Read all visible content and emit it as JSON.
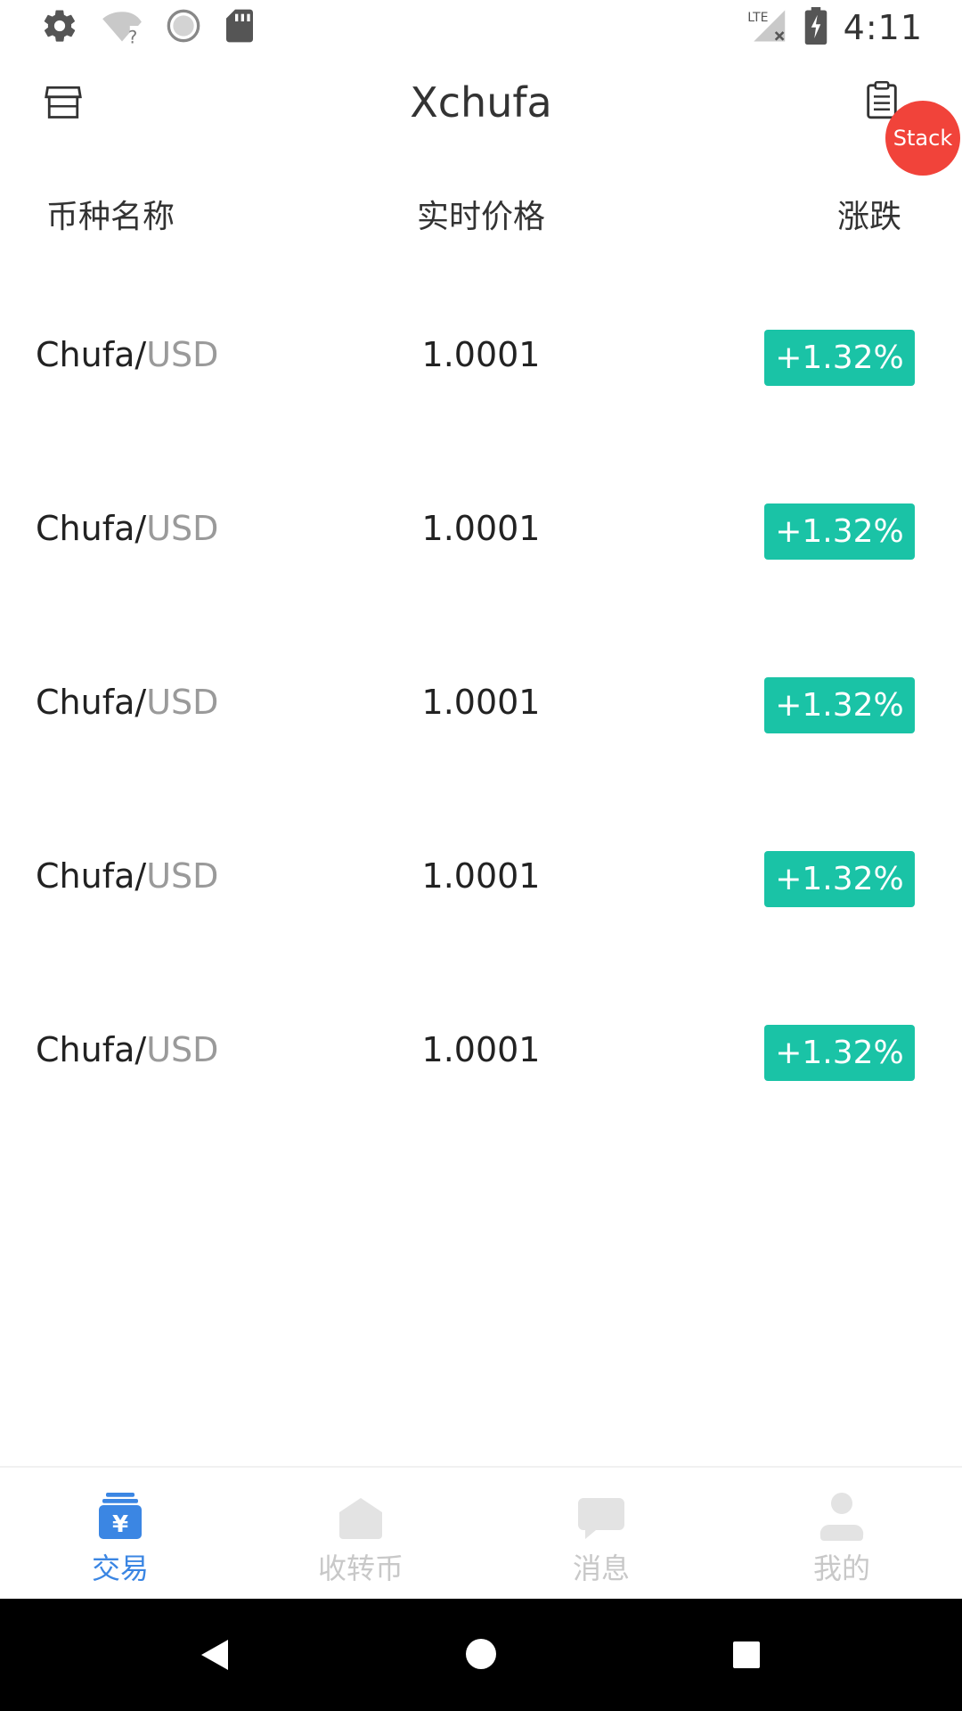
{
  "status_bar": {
    "time": "4:11",
    "network": "LTE",
    "icons": [
      "gear-icon",
      "wifi-question-icon",
      "sync-circle-icon",
      "sd-card-icon",
      "lte-signal-icon",
      "battery-charging-icon"
    ]
  },
  "header": {
    "title": "Xchufa",
    "left_icon": "shop-icon",
    "right_icon": "clipboard-icon",
    "stack_label": "Stack"
  },
  "columns": {
    "name": "币种名称",
    "price": "实时价格",
    "change": "涨跌"
  },
  "rows": [
    {
      "base": "Chufa",
      "sep": "/",
      "quote": "USD",
      "price": "1.0001",
      "change": "+1.32%"
    },
    {
      "base": "Chufa",
      "sep": "/",
      "quote": "USD",
      "price": "1.0001",
      "change": "+1.32%"
    },
    {
      "base": "Chufa",
      "sep": "/",
      "quote": "USD",
      "price": "1.0001",
      "change": "+1.32%"
    },
    {
      "base": "Chufa",
      "sep": "/",
      "quote": "USD",
      "price": "1.0001",
      "change": "+1.32%"
    },
    {
      "base": "Chufa",
      "sep": "/",
      "quote": "USD",
      "price": "1.0001",
      "change": "+1.32%"
    }
  ],
  "bottom_nav": [
    {
      "label": "交易",
      "icon": "yen-wallet-icon",
      "active": true
    },
    {
      "label": "收转币",
      "icon": "home-icon",
      "active": false
    },
    {
      "label": "消息",
      "icon": "message-icon",
      "active": false
    },
    {
      "label": "我的",
      "icon": "user-icon",
      "active": false
    }
  ],
  "colors": {
    "accent": "#3b86e3",
    "rise": "#1ac3a6",
    "stack": "#f1433a",
    "inactive": "#c8c8c8"
  }
}
